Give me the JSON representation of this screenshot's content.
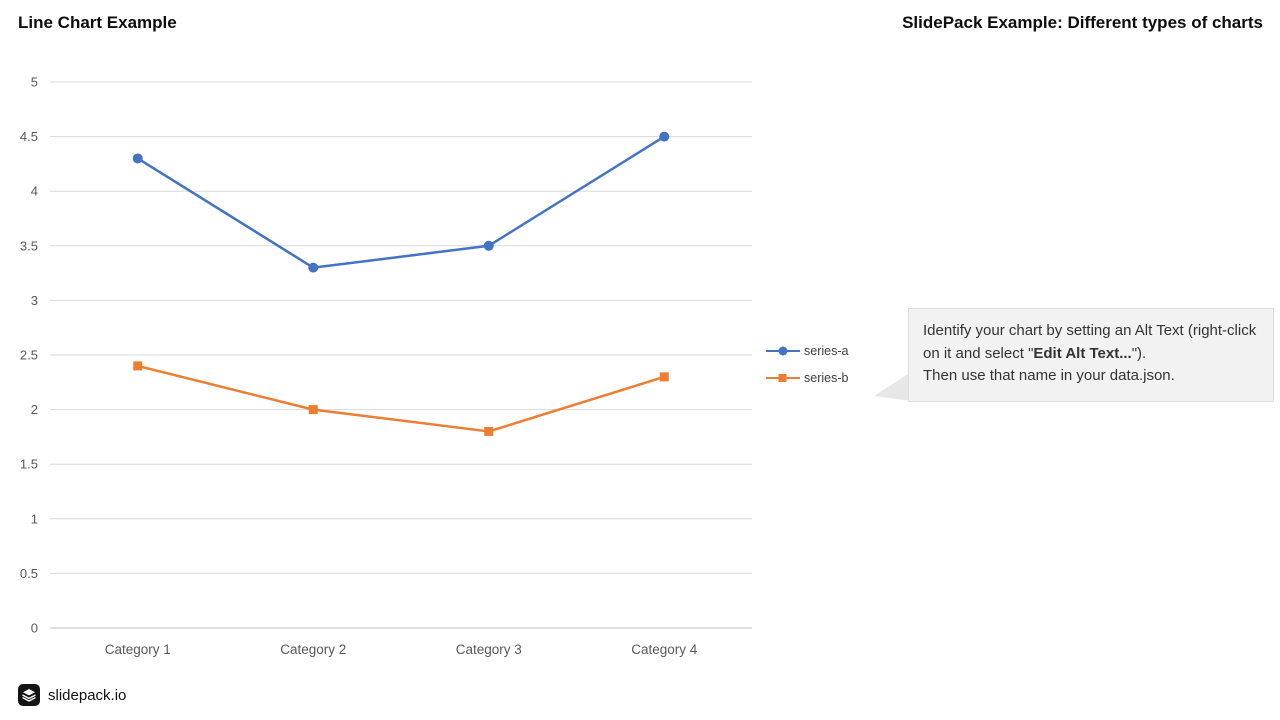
{
  "slide": {
    "title": "SlidePack Example: Different types of charts"
  },
  "chart_data": {
    "type": "line",
    "title": "Line Chart Example",
    "categories": [
      "Category 1",
      "Category 2",
      "Category 3",
      "Category 4"
    ],
    "series": [
      {
        "name": "series-a",
        "values": [
          4.3,
          3.3,
          3.5,
          4.5
        ],
        "color": "#4472C4",
        "marker": "circle"
      },
      {
        "name": "series-b",
        "values": [
          2.4,
          2.0,
          1.8,
          2.3
        ],
        "color": "#ED7D31",
        "marker": "square"
      }
    ],
    "ylim": [
      0,
      5
    ],
    "ytick_step": 0.5,
    "ytick_labels": [
      "0",
      "0.5",
      "1",
      "1.5",
      "2",
      "2.5",
      "3",
      "3.5",
      "4",
      "4.5",
      "5"
    ],
    "grid": true,
    "gridline_color": "#D9D9D9",
    "axis_label_color": "#595959",
    "legend_position": "right"
  },
  "callout": {
    "text_before_bold": "Identify your chart by setting an Alt Text (right-click on it and select \"",
    "bold_text": "Edit Alt Text...",
    "text_after_bold": "\").",
    "line2": "Then use that name in your data.json.",
    "background": "#F2F2F2"
  },
  "footer": {
    "brand": "slidepack.io",
    "logo_icon": "layers-stack-icon"
  }
}
